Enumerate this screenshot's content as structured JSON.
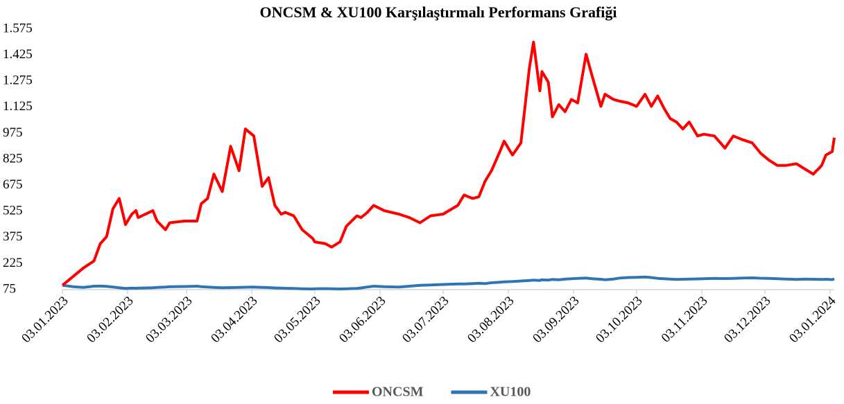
{
  "chart_data": {
    "type": "line",
    "title": "ONCSM & XU100 Karşılaştırmalı Performans Grafiği",
    "x": [
      "03.01.2023",
      "08.01.2023",
      "13.01.2023",
      "18.01.2023",
      "21.01.2023",
      "24.01.2023",
      "27.01.2023",
      "30.01.2023",
      "02.02.2023",
      "05.02.2023",
      "07.02.2023",
      "08.02.2023",
      "15.02.2023",
      "17.02.2023",
      "21.02.2023",
      "23.02.2023",
      "02.03.2023",
      "08.03.2023",
      "10.03.2023",
      "13.03.2023",
      "16.03.2023",
      "20.03.2023",
      "24.03.2023",
      "28.03.2023",
      "31.03.2023",
      "04.04.2023",
      "08.04.2023",
      "11.04.2023",
      "14.04.2023",
      "17.04.2023",
      "19.04.2023",
      "23.04.2023",
      "27.04.2023",
      "02.05.2023",
      "03.05.2023",
      "08.05.2023",
      "11.05.2023",
      "15.05.2023",
      "18.05.2023",
      "23.05.2023",
      "25.05.2023",
      "28.05.2023",
      "31.05.2023",
      "05.06.2023",
      "12.06.2023",
      "17.06.2023",
      "22.06.2023",
      "27.06.2023",
      "03.07.2023",
      "10.07.2023",
      "13.07.2023",
      "17.07.2023",
      "20.07.2023",
      "23.07.2023",
      "26.07.2023",
      "30.07.2023",
      "01.08.2023",
      "05.08.2023",
      "09.08.2023",
      "13.08.2023",
      "15.08.2023",
      "18.08.2023",
      "19.08.2023",
      "22.08.2023",
      "24.08.2023",
      "27.08.2023",
      "30.08.2023",
      "02.09.2023",
      "05.09.2023",
      "09.09.2023",
      "12.09.2023",
      "16.09.2023",
      "18.09.2023",
      "22.09.2023",
      "25.09.2023",
      "29.09.2023",
      "03.10.2023",
      "07.10.2023",
      "10.10.2023",
      "13.10.2023",
      "16.10.2023",
      "19.10.2023",
      "22.10.2023",
      "25.10.2023",
      "28.10.2023",
      "01.11.2023",
      "04.11.2023",
      "09.11.2023",
      "14.11.2023",
      "18.11.2023",
      "22.11.2023",
      "27.11.2023",
      "01.12.2023",
      "05.12.2023",
      "09.12.2023",
      "13.12.2023",
      "18.12.2023",
      "22.12.2023",
      "26.12.2023",
      "30.12.2023",
      "01.01.2024",
      "04.01.2024",
      "05.01.2024"
    ],
    "series": [
      {
        "name": "ONCSM",
        "color": "#ff0000",
        "values": [
          100,
          150,
          200,
          240,
          340,
          380,
          540,
          600,
          450,
          510,
          530,
          490,
          530,
          470,
          420,
          460,
          470,
          470,
          570,
          600,
          740,
          640,
          900,
          760,
          1000,
          960,
          670,
          720,
          560,
          510,
          520,
          500,
          420,
          370,
          350,
          340,
          320,
          350,
          440,
          500,
          490,
          520,
          560,
          530,
          510,
          490,
          460,
          500,
          510,
          560,
          620,
          600,
          610,
          700,
          760,
          870,
          930,
          850,
          920,
          1350,
          1500,
          1220,
          1330,
          1270,
          1070,
          1140,
          1100,
          1170,
          1150,
          1430,
          1300,
          1130,
          1200,
          1170,
          1160,
          1150,
          1130,
          1200,
          1130,
          1190,
          1120,
          1060,
          1040,
          1000,
          1040,
          960,
          970,
          960,
          890,
          960,
          940,
          920,
          860,
          820,
          790,
          790,
          800,
          770,
          740,
          790,
          850,
          870,
          950
        ]
      },
      {
        "name": "XU100",
        "color": "#2e75b6",
        "values": [
          100,
          92,
          88,
          95,
          96,
          94,
          90,
          86,
          82,
          84,
          83,
          84,
          86,
          88,
          90,
          92,
          93,
          95,
          92,
          90,
          88,
          86,
          87,
          88,
          89,
          90,
          88,
          87,
          85,
          84,
          83,
          82,
          80,
          79,
          80,
          81,
          80,
          79,
          80,
          82,
          85,
          90,
          95,
          92,
          90,
          95,
          100,
          102,
          105,
          108,
          108,
          110,
          112,
          110,
          115,
          118,
          120,
          122,
          125,
          128,
          130,
          128,
          132,
          130,
          134,
          132,
          136,
          138,
          140,
          142,
          138,
          135,
          132,
          136,
          142,
          145,
          146,
          148,
          145,
          140,
          138,
          136,
          134,
          135,
          136,
          137,
          138,
          140,
          139,
          140,
          142,
          143,
          141,
          140,
          138,
          136,
          134,
          136,
          135,
          134,
          135,
          133,
          137
        ]
      }
    ],
    "xlim": [
      "03.01.2023",
      "05.01.2024"
    ],
    "xticks": [
      "03.01.2023",
      "03.02.2023",
      "03.03.2023",
      "03.04.2023",
      "03.05.2023",
      "03.06.2023",
      "03.07.2023",
      "03.08.2023",
      "03.09.2023",
      "03.10.2023",
      "03.11.2023",
      "03.12.2023",
      "03.01.2024"
    ],
    "ylim": [
      75,
      1575
    ],
    "yticks": [
      75,
      225,
      375,
      525,
      675,
      825,
      975,
      {
        "value": 1125,
        "label": "1.125"
      },
      {
        "value": 1275,
        "label": "1.275"
      },
      {
        "value": 1425,
        "label": "1.425"
      },
      {
        "value": 1575,
        "label": "1.575"
      }
    ],
    "grid": false,
    "legend": "bottom"
  }
}
